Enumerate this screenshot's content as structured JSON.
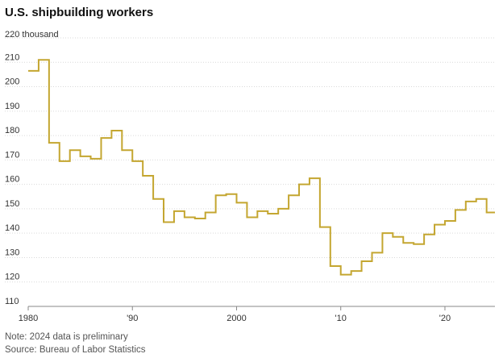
{
  "chart_data": {
    "type": "line",
    "step": true,
    "title": "U.S. shipbuilding workers",
    "y_unit_label": "220 thousand",
    "ylim": [
      110,
      220
    ],
    "y_ticks": [
      110,
      120,
      130,
      140,
      150,
      160,
      170,
      180,
      190,
      200,
      210
    ],
    "xlim": [
      1980,
      2024.8
    ],
    "x_ticks": [
      {
        "value": 1980,
        "label": "1980"
      },
      {
        "value": 1990,
        "label": "'90"
      },
      {
        "value": 2000,
        "label": "2000"
      },
      {
        "value": 2010,
        "label": "'10"
      },
      {
        "value": 2020,
        "label": "'20"
      }
    ],
    "grid": true,
    "series": [
      {
        "color": "#c4a630",
        "x": [
          1980,
          1981,
          1982,
          1983,
          1984,
          1985,
          1986,
          1987,
          1988,
          1989,
          1990,
          1991,
          1992,
          1993,
          1994,
          1995,
          1996,
          1997,
          1998,
          1999,
          2000,
          2001,
          2002,
          2003,
          2004,
          2005,
          2006,
          2007,
          2008,
          2009,
          2010,
          2011,
          2012,
          2013,
          2014,
          2015,
          2016,
          2017,
          2018,
          2019,
          2020,
          2021,
          2022,
          2023,
          2024
        ],
        "y": [
          206.5,
          211,
          177,
          169.5,
          174,
          171.5,
          170.5,
          179,
          182,
          174,
          169.5,
          163.5,
          154,
          144.5,
          149,
          146.5,
          146,
          148.5,
          155.5,
          156,
          152.5,
          146.5,
          149,
          148,
          150,
          155.5,
          160,
          162.5,
          142.5,
          126.5,
          123,
          124.5,
          128.5,
          132,
          140,
          138.5,
          136,
          135.5,
          139.5,
          143.5,
          145,
          149.5,
          153,
          154,
          148.5
        ]
      }
    ],
    "notes": [
      "Note: 2024 data is preliminary",
      "Source: Bureau of Labor Statistics"
    ]
  }
}
